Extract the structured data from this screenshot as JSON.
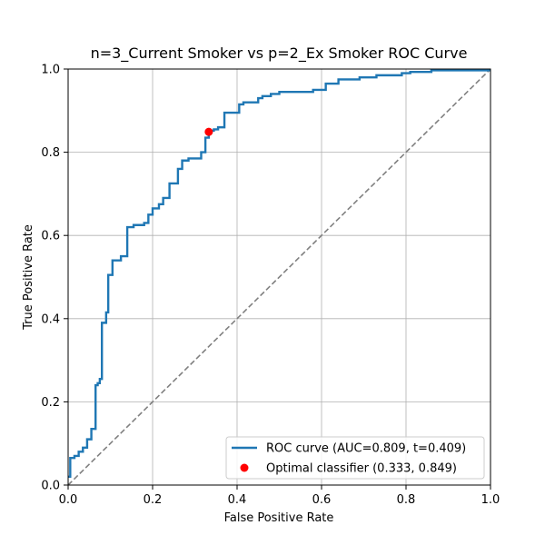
{
  "chart_data": {
    "type": "line",
    "title": "n=3_Current Smoker vs p=2_Ex Smoker ROC Curve",
    "xlabel": "False Positive Rate",
    "ylabel": "True Positive Rate",
    "xlim": [
      0,
      1
    ],
    "ylim": [
      0,
      1
    ],
    "xticks": [
      0,
      0.2,
      0.4,
      0.6,
      0.8,
      1.0
    ],
    "xtick_labels": [
      "0.0",
      "0.2",
      "0.4",
      "0.6",
      "0.8",
      "1.0"
    ],
    "yticks": [
      0,
      0.2,
      0.4,
      0.6,
      0.8,
      1.0
    ],
    "ytick_labels": [
      "0.0",
      "0.2",
      "0.4",
      "0.6",
      "0.8",
      "1.0"
    ],
    "grid": true,
    "legend_position": "lower-right",
    "series": [
      {
        "name": "ROC curve (AUC=0.809, t=0.409)",
        "color": "#1f77b4",
        "style": "step",
        "x": [
          0,
          0.005,
          0.005,
          0.015,
          0.015,
          0.025,
          0.025,
          0.035,
          0.035,
          0.045,
          0.045,
          0.055,
          0.055,
          0.065,
          0.065,
          0.07,
          0.07,
          0.075,
          0.075,
          0.08,
          0.08,
          0.09,
          0.09,
          0.095,
          0.095,
          0.105,
          0.105,
          0.125,
          0.125,
          0.14,
          0.14,
          0.155,
          0.155,
          0.18,
          0.18,
          0.19,
          0.19,
          0.2,
          0.2,
          0.215,
          0.215,
          0.225,
          0.225,
          0.24,
          0.24,
          0.26,
          0.26,
          0.27,
          0.27,
          0.285,
          0.285,
          0.315,
          0.315,
          0.325,
          0.325,
          0.333,
          0.333,
          0.34,
          0.34,
          0.345,
          0.345,
          0.355,
          0.355,
          0.37,
          0.37,
          0.405,
          0.405,
          0.415,
          0.415,
          0.45,
          0.45,
          0.46,
          0.46,
          0.48,
          0.48,
          0.5,
          0.5,
          0.58,
          0.58,
          0.61,
          0.61,
          0.64,
          0.64,
          0.69,
          0.69,
          0.73,
          0.73,
          0.79,
          0.79,
          0.81,
          0.81,
          0.86,
          0.86,
          0.9,
          0.9,
          1.0
        ],
        "y": [
          0.02,
          0.02,
          0.065,
          0.065,
          0.07,
          0.07,
          0.08,
          0.08,
          0.09,
          0.09,
          0.11,
          0.11,
          0.135,
          0.135,
          0.24,
          0.24,
          0.245,
          0.245,
          0.255,
          0.255,
          0.39,
          0.39,
          0.415,
          0.415,
          0.505,
          0.505,
          0.54,
          0.54,
          0.55,
          0.55,
          0.62,
          0.62,
          0.625,
          0.625,
          0.63,
          0.63,
          0.65,
          0.65,
          0.665,
          0.665,
          0.675,
          0.675,
          0.69,
          0.69,
          0.725,
          0.725,
          0.76,
          0.76,
          0.78,
          0.78,
          0.785,
          0.785,
          0.8,
          0.8,
          0.835,
          0.835,
          0.849,
          0.849,
          0.852,
          0.852,
          0.855,
          0.855,
          0.86,
          0.86,
          0.895,
          0.895,
          0.915,
          0.915,
          0.92,
          0.92,
          0.93,
          0.93,
          0.935,
          0.935,
          0.94,
          0.94,
          0.945,
          0.945,
          0.95,
          0.95,
          0.965,
          0.965,
          0.975,
          0.975,
          0.98,
          0.98,
          0.985,
          0.985,
          0.99,
          0.99,
          0.993,
          0.993,
          0.997,
          0.997,
          0.997,
          0.997
        ]
      },
      {
        "name": "",
        "color": "#808080",
        "style": "dashed",
        "x": [
          0,
          1
        ],
        "y": [
          0,
          1
        ]
      }
    ],
    "points": [
      {
        "name": "Optimal classifier (0.333, 0.849)",
        "x": 0.333,
        "y": 0.849,
        "color": "#ff0000"
      }
    ],
    "legend": [
      {
        "label": "ROC curve (AUC=0.809, t=0.409)",
        "kind": "line",
        "color": "#1f77b4"
      },
      {
        "label": "Optimal classifier (0.333, 0.849)",
        "kind": "marker",
        "color": "#ff0000"
      }
    ]
  }
}
